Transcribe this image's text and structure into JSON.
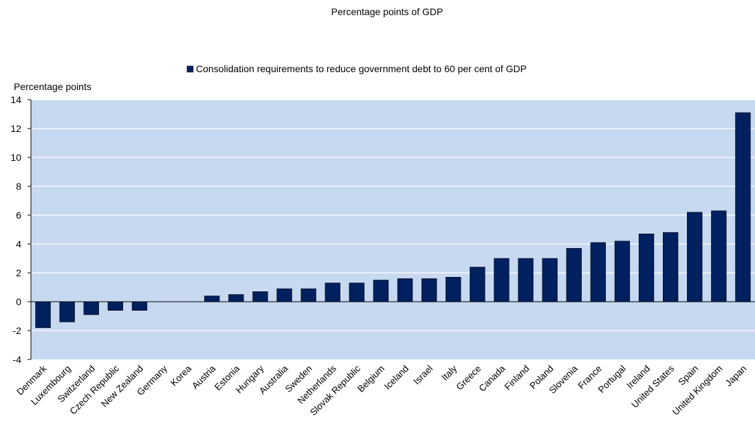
{
  "chart_data": {
    "type": "bar",
    "title": "Percentage points of GDP",
    "ylabel": "Percentage points",
    "xlabel": "",
    "ylim": [
      -4,
      14
    ],
    "yticks": [
      -4,
      -2,
      0,
      2,
      4,
      6,
      8,
      10,
      12,
      14
    ],
    "grid": true,
    "legend_position": "top",
    "categories": [
      "Denmark",
      "Luxembourg",
      "Switzerland",
      "Czech Republic",
      "New Zealand",
      "Germany",
      "Korea",
      "Austria",
      "Estonia",
      "Hungary",
      "Australia",
      "Sweden",
      "Netherlands",
      "Slovak Republic",
      "Belgium",
      "Iceland",
      "Israel",
      "Italy",
      "Greece",
      "Canada",
      "Finland",
      "Poland",
      "Slovenia",
      "France",
      "Portugal",
      "Ireland",
      "United States",
      "Spain",
      "United Kingdom",
      "Japan"
    ],
    "series": [
      {
        "name": "Consolidation requirements to reduce government debt to 60 per cent of GDP",
        "color": "#002060",
        "values": [
          -1.8,
          -1.4,
          -0.9,
          -0.6,
          -0.6,
          0.0,
          0.0,
          0.4,
          0.5,
          0.7,
          0.9,
          0.9,
          1.3,
          1.3,
          1.5,
          1.6,
          1.6,
          1.7,
          2.4,
          3.0,
          3.0,
          3.0,
          3.7,
          4.1,
          4.2,
          4.7,
          4.8,
          6.2,
          6.3,
          13.1
        ]
      }
    ],
    "colors": {
      "plot_background": "#c6d9f0",
      "gridline": "#ffffff",
      "bar": "#002060"
    }
  }
}
